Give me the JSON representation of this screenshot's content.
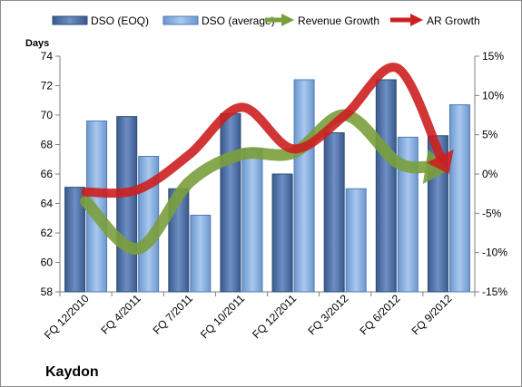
{
  "chart_data": {
    "type": "bar",
    "company": "Kaydon",
    "ylabel": "Days",
    "categories": [
      "FQ 12/2010",
      "FQ 4/2011",
      "FQ 7/2011",
      "FQ 10/2011",
      "FQ 12/2011",
      "FQ 3/2012",
      "FQ 6/2012",
      "FQ 9/2012"
    ],
    "ylim": [
      58,
      74
    ],
    "y_ticks": [
      58,
      60,
      62,
      64,
      66,
      68,
      70,
      72,
      74
    ],
    "y2lim": [
      -15,
      15
    ],
    "y2_ticks": [
      "-15%",
      "-10%",
      "-5%",
      "0%",
      "5%",
      "10%",
      "15%"
    ],
    "grid": false,
    "legend_position": "top",
    "series": [
      {
        "name": "DSO (EOQ)",
        "kind": "bar",
        "axis": "left",
        "color": "#4a6da0",
        "values": [
          65.1,
          69.9,
          65.0,
          70.1,
          66.0,
          68.8,
          72.4,
          68.6
        ]
      },
      {
        "name": "DSO (average)",
        "kind": "bar",
        "axis": "left",
        "color": "#7fa9dc",
        "values": [
          69.6,
          67.2,
          63.2,
          67.7,
          72.4,
          65.0,
          68.5,
          70.7
        ]
      },
      {
        "name": "Revenue Growth",
        "kind": "arrow-line",
        "axis": "right",
        "color": "#7a9e3c",
        "values": [
          -3.5,
          -9.5,
          -1.0,
          2.5,
          2.7,
          7.5,
          1.5,
          0.5
        ]
      },
      {
        "name": "AR Growth",
        "kind": "arrow-line",
        "axis": "right",
        "color": "#cc1f1f",
        "values": [
          -2.3,
          -2.0,
          2.5,
          8.5,
          3.2,
          7.5,
          13.5,
          0.0
        ]
      }
    ]
  }
}
